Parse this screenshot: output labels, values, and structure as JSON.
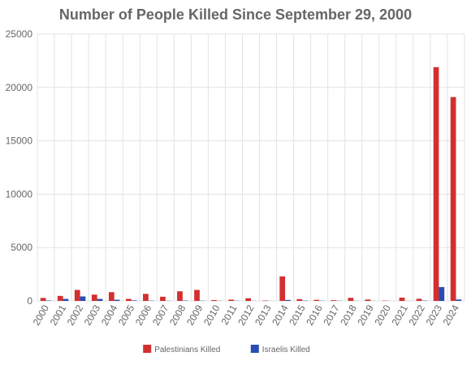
{
  "chart_data": {
    "type": "bar",
    "title": "Number of People Killed Since September 29, 2000",
    "xlabel": "",
    "ylabel": "",
    "ylim": [
      0,
      25000
    ],
    "yticks": [
      0,
      5000,
      10000,
      15000,
      20000,
      25000
    ],
    "grid": true,
    "legend_position": "bottom",
    "categories": [
      "2000",
      "2001",
      "2002",
      "2003",
      "2004",
      "2005",
      "2006",
      "2007",
      "2008",
      "2009",
      "2010",
      "2011",
      "2012",
      "2013",
      "2014",
      "2015",
      "2016",
      "2017",
      "2018",
      "2019",
      "2020",
      "2021",
      "2022",
      "2023",
      "2024"
    ],
    "series": [
      {
        "name": "Palestinians Killed",
        "color": "#d32f2f",
        "values": [
          280,
          470,
          1030,
          590,
          820,
          190,
          660,
          390,
          900,
          1030,
          80,
          120,
          250,
          40,
          2300,
          170,
          100,
          70,
          290,
          130,
          30,
          310,
          200,
          21900,
          19100
        ]
      },
      {
        "name": "Israelis Killed",
        "color": "#2a4db3",
        "values": [
          40,
          190,
          420,
          190,
          110,
          50,
          30,
          15,
          35,
          20,
          10,
          20,
          10,
          5,
          90,
          30,
          20,
          20,
          10,
          10,
          5,
          10,
          30,
          1300,
          130
        ]
      }
    ]
  }
}
